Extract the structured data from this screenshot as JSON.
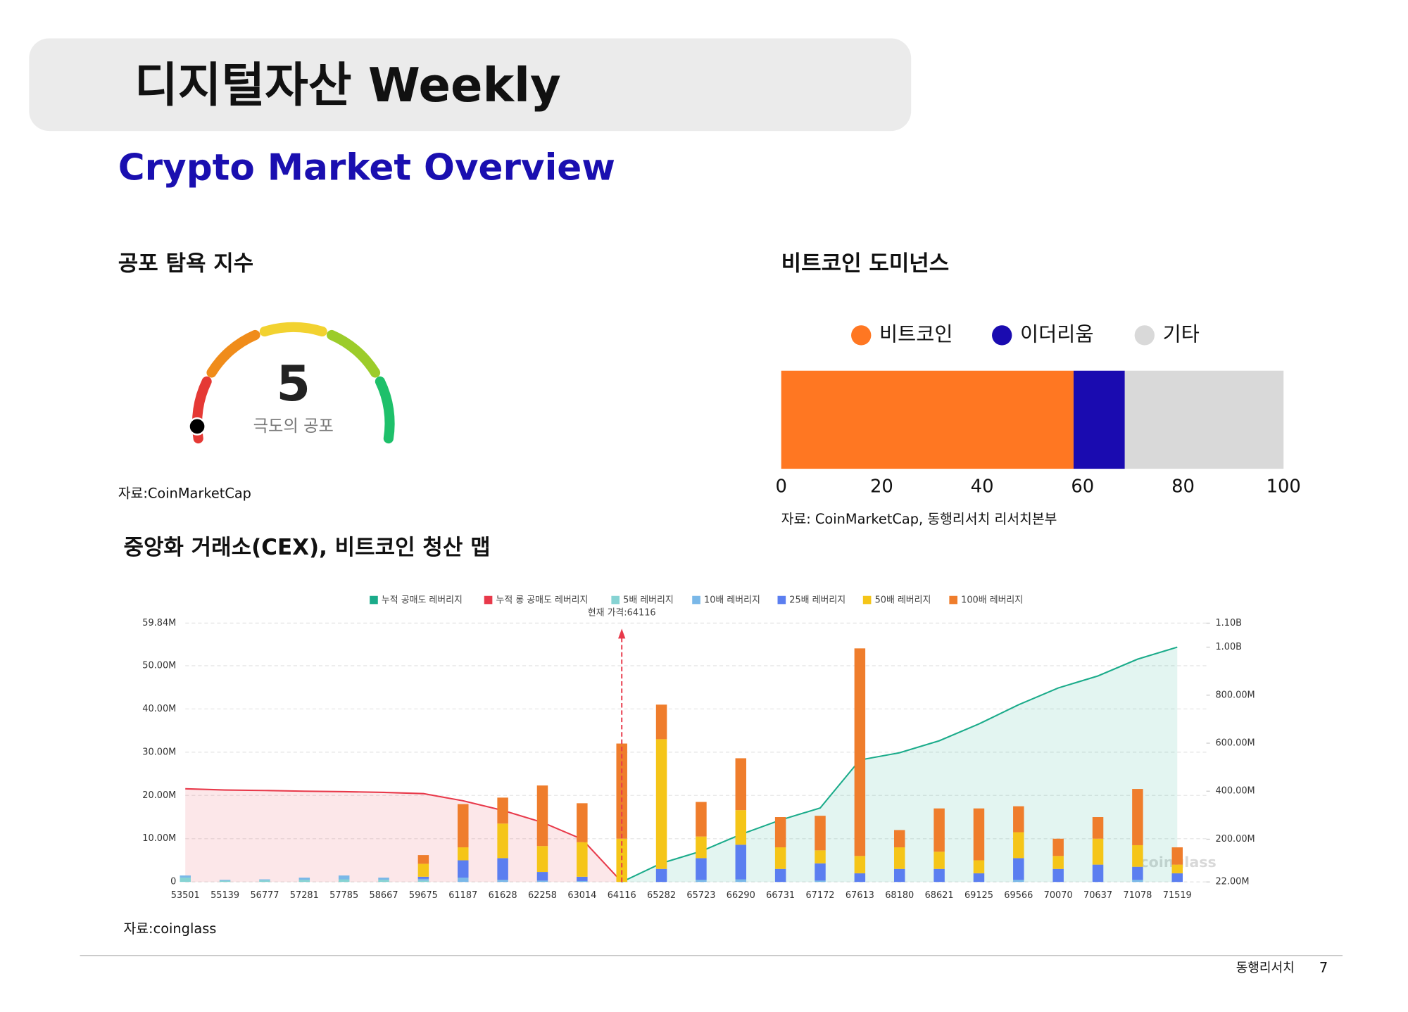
{
  "header": {
    "title": "디지털자산 Weekly",
    "subtitle": "Crypto Market Overview"
  },
  "chart_data": [
    {
      "type": "gauge",
      "title": "공포 탐욕 지수",
      "value": 5,
      "label": "극도의 공포",
      "ylim": [
        0,
        100
      ],
      "source": "자료:CoinMarketCap"
    },
    {
      "type": "stacked-hbar",
      "title": "비트코인 도미넌스",
      "categories": [
        null
      ],
      "series": [
        {
          "name": "비트코인",
          "color": "#ff7722",
          "values": [
            58.2
          ]
        },
        {
          "name": "이더리움",
          "color": "#1a0bb0",
          "values": [
            10.2
          ]
        },
        {
          "name": "기타",
          "color": "#d9d9d9",
          "values": [
            31.6
          ]
        }
      ],
      "xlim": [
        0,
        100
      ],
      "xticks": [
        0,
        20,
        40,
        60,
        80,
        100
      ],
      "source": "자료: CoinMarketCap, 동행리서치 리서치본부"
    },
    {
      "type": "liquidation-map",
      "title": "중앙화 거래소(CEX), 비트코인 청산 맵",
      "categories": [
        "53501",
        "55139",
        "56777",
        "57281",
        "57785",
        "58667",
        "59675",
        "61187",
        "61628",
        "62258",
        "63014",
        "64116",
        "65282",
        "65723",
        "66290",
        "66731",
        "67172",
        "67613",
        "68180",
        "68621",
        "69125",
        "69566",
        "70070",
        "70637",
        "71078",
        "71519"
      ],
      "series": [
        {
          "name": "누적 공매도 레버리지",
          "color": "#1aab8a",
          "axis": "y2",
          "values": [
            null,
            null,
            null,
            null,
            null,
            null,
            null,
            null,
            null,
            null,
            null,
            22000000,
            100000000,
            150000000,
            220000000,
            280000000,
            330000000,
            530000000,
            560000000,
            610000000,
            680000000,
            760000000,
            830000000,
            880000000,
            950000000,
            1000000000
          ]
        },
        {
          "name": "누적 롱 공매도 레버리지",
          "color": "#e8394a",
          "axis": "y2",
          "values": [
            410000000,
            405000000,
            403000000,
            400000000,
            398000000,
            395000000,
            390000000,
            360000000,
            320000000,
            270000000,
            200000000,
            22000000,
            null,
            null,
            null,
            null,
            null,
            null,
            null,
            null,
            null,
            null,
            null,
            null,
            null,
            null
          ]
        },
        {
          "name": "5배 레버리지",
          "color": "#86d3d3",
          "values": [
            1000000,
            300000,
            400000,
            500000,
            600000,
            500000,
            300000,
            0,
            0,
            0,
            0,
            0,
            0,
            0,
            0,
            0,
            0,
            0,
            0,
            0,
            0,
            0,
            0,
            0,
            0,
            0
          ]
        },
        {
          "name": "10배 레버리지",
          "color": "#7ab8e8",
          "values": [
            500000,
            200000,
            200000,
            500000,
            900000,
            500000,
            400000,
            1000000,
            500000,
            300000,
            200000,
            0,
            0,
            500000,
            600000,
            0,
            300000,
            0,
            0,
            0,
            0,
            500000,
            0,
            0,
            500000,
            0
          ]
        },
        {
          "name": "25배 레버리지",
          "color": "#5b7ef0",
          "values": [
            0,
            0,
            0,
            0,
            0,
            0,
            500000,
            4000000,
            5000000,
            2000000,
            1000000,
            0,
            3000000,
            5000000,
            8000000,
            3000000,
            4000000,
            2000000,
            3000000,
            3000000,
            2000000,
            5000000,
            3000000,
            4000000,
            3000000,
            2000000
          ]
        },
        {
          "name": "50배 레버리지",
          "color": "#f5c518",
          "values": [
            0,
            0,
            0,
            0,
            0,
            0,
            3000000,
            3000000,
            8000000,
            6000000,
            8000000,
            10000000,
            30000000,
            5000000,
            8000000,
            5000000,
            3000000,
            4000000,
            5000000,
            4000000,
            3000000,
            6000000,
            3000000,
            6000000,
            5000000,
            2000000
          ]
        },
        {
          "name": "100배 레버리지",
          "color": "#ef7d2c",
          "values": [
            0,
            0,
            0,
            0,
            0,
            0,
            2000000,
            10000000,
            6000000,
            14000000,
            9000000,
            22000000,
            8000000,
            8000000,
            12000000,
            7000000,
            8000000,
            48000000,
            4000000,
            10000000,
            12000000,
            6000000,
            4000000,
            5000000,
            13000000,
            4000000
          ]
        }
      ],
      "ylim": [
        0,
        59840000
      ],
      "yticks": [
        0,
        {
          "value": 10000000,
          "label": "10.00M"
        },
        {
          "value": 20000000,
          "label": "20.00M"
        },
        {
          "value": 30000000,
          "label": "30.00M"
        },
        {
          "value": 40000000,
          "label": "40.00M"
        },
        {
          "value": 50000000,
          "label": "50.00M"
        },
        {
          "value": 59840000,
          "label": "59.84M"
        }
      ],
      "y2lim": [
        22000000,
        1100000000
      ],
      "y2ticks": [
        {
          "value": 22000000,
          "label": "22.00M"
        },
        {
          "value": 200000000,
          "label": "200.00M"
        },
        {
          "value": 400000000,
          "label": "400.00M"
        },
        {
          "value": 600000000,
          "label": "600.00M"
        },
        {
          "value": 800000000,
          "label": "800.00M"
        },
        {
          "value": 1000000000,
          "label": "1.00B"
        },
        {
          "value": 1100000000,
          "label": "1.10B"
        }
      ],
      "grid": true,
      "annotation": "현재 가격:64116",
      "watermark": "coinglass",
      "source": "자료:coinglass"
    }
  ],
  "footer": {
    "company": "동행리서치",
    "page": 7
  }
}
